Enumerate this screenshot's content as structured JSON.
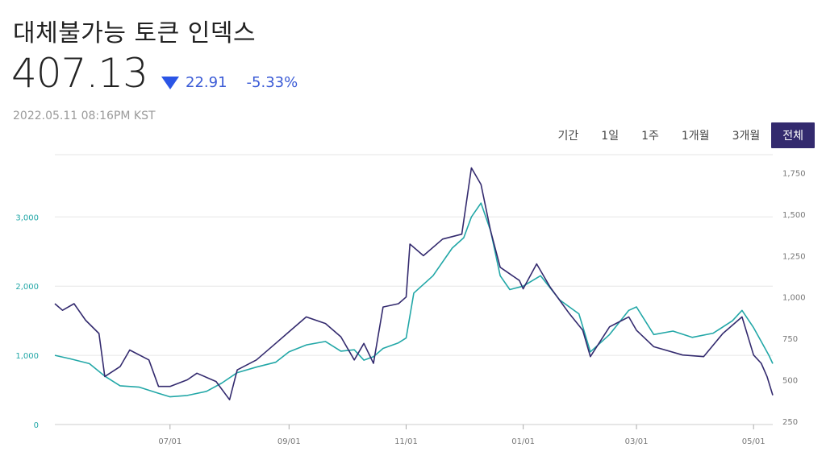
{
  "header": {
    "title": "대체불가능 토큰 인덱스",
    "price": "407.13",
    "change": "22.91",
    "change_pct": "-5.33%",
    "timestamp": "2022.05.11 08:16PM KST"
  },
  "range_tabs": [
    {
      "label": "기간",
      "active": false
    },
    {
      "label": "1일",
      "active": false
    },
    {
      "label": "1주",
      "active": false
    },
    {
      "label": "1개월",
      "active": false
    },
    {
      "label": "3개월",
      "active": false
    },
    {
      "label": "전체",
      "active": true
    }
  ],
  "colors": {
    "series_teal": "#22a7a7",
    "series_purple": "#332a6e",
    "accent_blue": "#2b55e6",
    "grid": "#e6e6e6"
  },
  "chart_data": {
    "type": "line",
    "x_tick_labels": [
      "07/01",
      "09/01",
      "11/01",
      "01/01",
      "03/01",
      "05/01"
    ],
    "x_ticks": [
      "2021-07-01",
      "2021-09-01",
      "2021-11-01",
      "2022-01-01",
      "2022-03-01",
      "2022-05-01"
    ],
    "x_range": [
      "2021-05-02",
      "2022-05-11"
    ],
    "left_axis": {
      "ticks": [
        "0",
        "1,000",
        "2,000",
        "3,000"
      ],
      "range": [
        0,
        3900
      ]
    },
    "right_axis": {
      "ticks": [
        "250",
        "500",
        "750",
        "1,000",
        "1,250",
        "1,500",
        "1,750"
      ],
      "range": [
        230,
        1860
      ]
    },
    "grid": true,
    "series": [
      {
        "axis": "left",
        "color": "#22a7a7",
        "points": [
          [
            "2021-05-02",
            1000
          ],
          [
            "2021-05-10",
            950
          ],
          [
            "2021-05-20",
            880
          ],
          [
            "2021-05-28",
            700
          ],
          [
            "2021-06-05",
            560
          ],
          [
            "2021-06-15",
            540
          ],
          [
            "2021-06-25",
            450
          ],
          [
            "2021-07-01",
            400
          ],
          [
            "2021-07-10",
            420
          ],
          [
            "2021-07-20",
            480
          ],
          [
            "2021-07-28",
            600
          ],
          [
            "2021-08-05",
            750
          ],
          [
            "2021-08-15",
            830
          ],
          [
            "2021-08-25",
            900
          ],
          [
            "2021-09-01",
            1050
          ],
          [
            "2021-09-10",
            1150
          ],
          [
            "2021-09-20",
            1200
          ],
          [
            "2021-09-28",
            1060
          ],
          [
            "2021-10-05",
            1080
          ],
          [
            "2021-10-10",
            930
          ],
          [
            "2021-10-15",
            980
          ],
          [
            "2021-10-20",
            1100
          ],
          [
            "2021-10-28",
            1180
          ],
          [
            "2021-11-01",
            1250
          ],
          [
            "2021-11-05",
            1900
          ],
          [
            "2021-11-15",
            2150
          ],
          [
            "2021-11-25",
            2550
          ],
          [
            "2021-12-01",
            2700
          ],
          [
            "2021-12-05",
            3000
          ],
          [
            "2021-12-10",
            3200
          ],
          [
            "2021-12-15",
            2800
          ],
          [
            "2021-12-20",
            2150
          ],
          [
            "2021-12-25",
            1950
          ],
          [
            "2022-01-01",
            2000
          ],
          [
            "2022-01-10",
            2150
          ],
          [
            "2022-01-20",
            1800
          ],
          [
            "2022-01-30",
            1600
          ],
          [
            "2022-02-05",
            1050
          ],
          [
            "2022-02-15",
            1300
          ],
          [
            "2022-02-25",
            1650
          ],
          [
            "2022-03-01",
            1700
          ],
          [
            "2022-03-10",
            1300
          ],
          [
            "2022-03-20",
            1350
          ],
          [
            "2022-03-30",
            1260
          ],
          [
            "2022-04-10",
            1320
          ],
          [
            "2022-04-20",
            1500
          ],
          [
            "2022-04-25",
            1650
          ],
          [
            "2022-05-01",
            1400
          ],
          [
            "2022-05-05",
            1200
          ],
          [
            "2022-05-09",
            1000
          ],
          [
            "2022-05-11",
            880
          ]
        ]
      },
      {
        "axis": "right",
        "color": "#332a6e",
        "points": [
          [
            "2021-05-02",
            960
          ],
          [
            "2021-05-06",
            920
          ],
          [
            "2021-05-12",
            960
          ],
          [
            "2021-05-18",
            860
          ],
          [
            "2021-05-25",
            780
          ],
          [
            "2021-05-28",
            520
          ],
          [
            "2021-06-05",
            580
          ],
          [
            "2021-06-10",
            680
          ],
          [
            "2021-06-20",
            620
          ],
          [
            "2021-06-25",
            460
          ],
          [
            "2021-07-01",
            460
          ],
          [
            "2021-07-10",
            500
          ],
          [
            "2021-07-15",
            540
          ],
          [
            "2021-07-25",
            490
          ],
          [
            "2021-08-01",
            380
          ],
          [
            "2021-08-05",
            560
          ],
          [
            "2021-08-15",
            620
          ],
          [
            "2021-08-25",
            720
          ],
          [
            "2021-09-01",
            790
          ],
          [
            "2021-09-10",
            880
          ],
          [
            "2021-09-20",
            840
          ],
          [
            "2021-09-28",
            760
          ],
          [
            "2021-10-05",
            620
          ],
          [
            "2021-10-10",
            720
          ],
          [
            "2021-10-15",
            600
          ],
          [
            "2021-10-20",
            940
          ],
          [
            "2021-10-28",
            960
          ],
          [
            "2021-11-01",
            1000
          ],
          [
            "2021-11-03",
            1320
          ],
          [
            "2021-11-10",
            1250
          ],
          [
            "2021-11-20",
            1350
          ],
          [
            "2021-11-30",
            1380
          ],
          [
            "2021-12-05",
            1780
          ],
          [
            "2021-12-10",
            1680
          ],
          [
            "2021-12-15",
            1400
          ],
          [
            "2021-12-20",
            1180
          ],
          [
            "2021-12-30",
            1100
          ],
          [
            "2022-01-01",
            1050
          ],
          [
            "2022-01-08",
            1200
          ],
          [
            "2022-01-15",
            1060
          ],
          [
            "2022-01-25",
            900
          ],
          [
            "2022-02-01",
            800
          ],
          [
            "2022-02-05",
            640
          ],
          [
            "2022-02-15",
            820
          ],
          [
            "2022-02-25",
            880
          ],
          [
            "2022-03-01",
            800
          ],
          [
            "2022-03-10",
            700
          ],
          [
            "2022-03-25",
            650
          ],
          [
            "2022-04-05",
            640
          ],
          [
            "2022-04-15",
            780
          ],
          [
            "2022-04-25",
            880
          ],
          [
            "2022-05-01",
            650
          ],
          [
            "2022-05-05",
            600
          ],
          [
            "2022-05-08",
            520
          ],
          [
            "2022-05-11",
            407
          ]
        ]
      }
    ]
  }
}
